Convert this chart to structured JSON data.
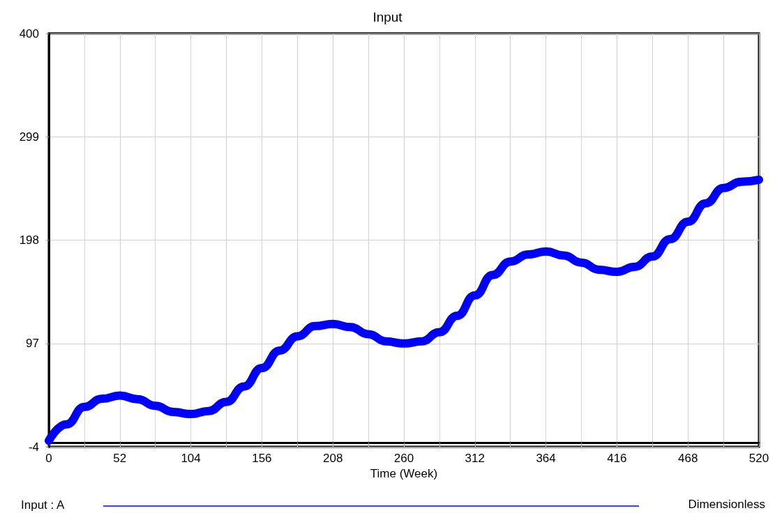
{
  "chart_data": {
    "type": "line",
    "title": "Input",
    "xlabel": "Time (Week)",
    "x": [
      0,
      13,
      26,
      39,
      52,
      65,
      78,
      91,
      104,
      117,
      130,
      143,
      156,
      169,
      182,
      195,
      208,
      221,
      234,
      247,
      260,
      273,
      286,
      299,
      312,
      325,
      338,
      351,
      364,
      377,
      390,
      403,
      416,
      429,
      442,
      455,
      468,
      481,
      494,
      507,
      520
    ],
    "series": [
      {
        "name": "Input : A",
        "color": "#0000ff",
        "values": [
          2,
          18,
          35,
          43,
          46,
          42.5,
          36,
          30,
          28,
          31,
          40,
          55,
          73,
          90,
          104,
          114,
          116,
          113,
          106,
          99,
          97,
          99,
          108,
          124,
          144,
          164,
          177,
          184,
          187,
          183,
          176,
          169,
          167,
          172,
          182,
          199,
          216,
          234,
          249,
          255,
          257
        ]
      }
    ],
    "xlim": [
      0,
      520
    ],
    "xticks": [
      0,
      {
        "value": 26,
        "label": null
      },
      52,
      {
        "value": 78,
        "label": null
      },
      104,
      {
        "value": 130,
        "label": null
      },
      156,
      {
        "value": 182,
        "label": null
      },
      208,
      {
        "value": 234,
        "label": null
      },
      260,
      {
        "value": 286,
        "label": null
      },
      312,
      {
        "value": 338,
        "label": null
      },
      364,
      {
        "value": 390,
        "label": null
      },
      416,
      {
        "value": 442,
        "label": null
      },
      468,
      {
        "value": 494,
        "label": null
      },
      520
    ],
    "ylim": [
      -4,
      400
    ],
    "yticks": [
      -4,
      97,
      198,
      299,
      400
    ],
    "grid": true,
    "legend": "bottom",
    "line_style": "solid",
    "annotations": [
      "Dimensionless"
    ]
  }
}
